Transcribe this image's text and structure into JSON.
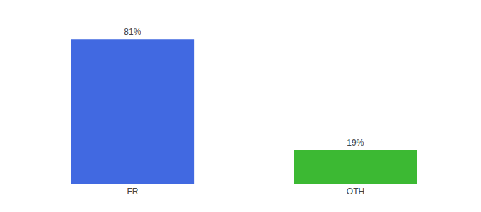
{
  "chart_data": {
    "type": "bar",
    "categories": [
      "FR",
      "OTH"
    ],
    "values": [
      81,
      19
    ],
    "value_labels": [
      "81%",
      "19%"
    ],
    "colors": [
      "#4169e1",
      "#3cb933"
    ],
    "ylim": [
      0,
      95
    ],
    "grid": false,
    "data_labels": true,
    "tick_labels": "x"
  }
}
